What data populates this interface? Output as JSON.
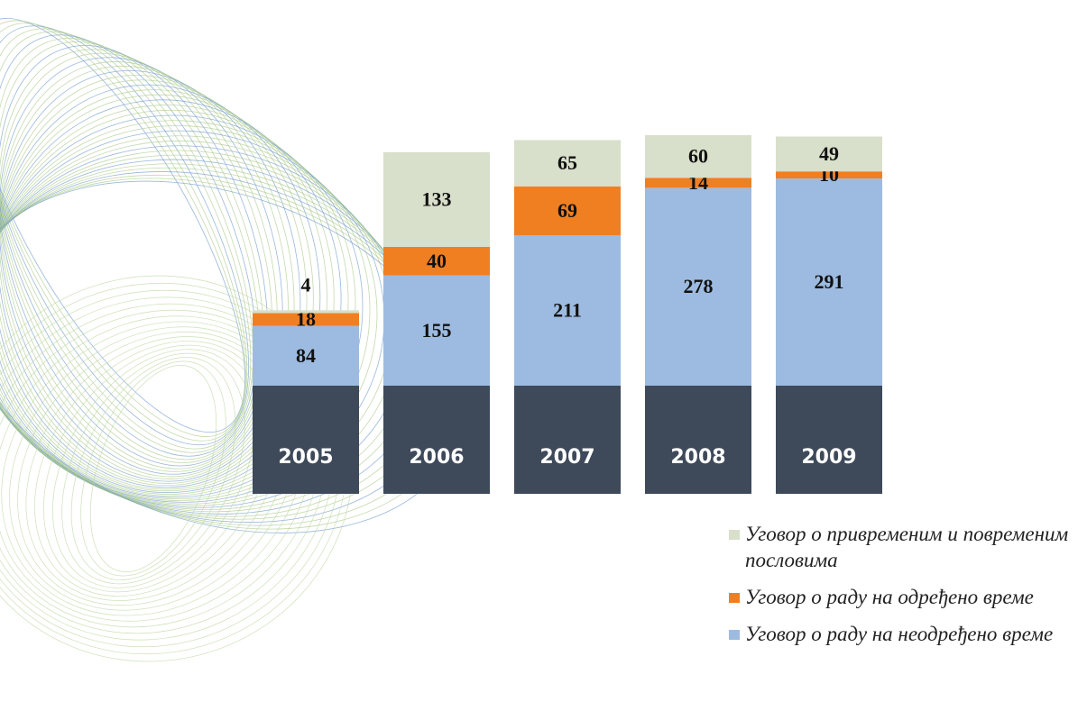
{
  "chart_data": {
    "type": "stacked-bar",
    "categories": [
      "2005",
      "2006",
      "2007",
      "2008",
      "2009"
    ],
    "series": [
      {
        "name": "Уговор о раду на неодређено време",
        "color": "#9dbbe0",
        "values": [
          84,
          155,
          211,
          278,
          291
        ]
      },
      {
        "name": "Уговор о раду на одређено време",
        "color": "#f07f22",
        "values": [
          18,
          40,
          69,
          14,
          10
        ]
      },
      {
        "name": "Уговор о привременим и повременим пословима",
        "color": "#d8dfca",
        "values": [
          4,
          133,
          65,
          60,
          49
        ]
      }
    ]
  }
}
